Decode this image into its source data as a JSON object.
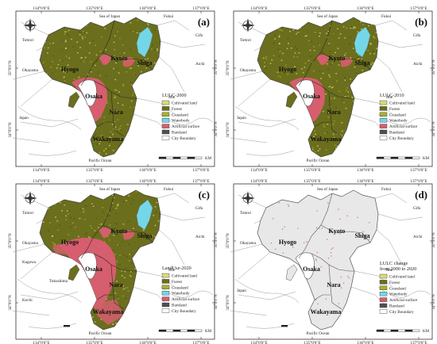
{
  "colors": {
    "forest": "#6b6e1c",
    "forest_dark": "#4f5214",
    "cultivated": "#d8dc7a",
    "grassland": "#a7b02e",
    "waterbody": "#73d7e8",
    "artificial": "#d65e6e",
    "bareland": "#505050",
    "change_bg": "#e8e8e8",
    "outline": "#7a7a7a"
  },
  "top_lon_ticks": [
    "134°0'0\"E",
    "135°0'0\"E",
    "136°0'0\"E",
    "137°0'0\"E"
  ],
  "bottom_lon_ticks": [
    "134°0'0\"E",
    "135°0'0\"E",
    "136°0'0\"E",
    "137°0'0\"E"
  ],
  "lat_ticks": [
    "35°0'0\"N",
    "34°0'0\"N"
  ],
  "scale_unit": "KM",
  "panels": [
    {
      "id": "a",
      "letter": "(a)",
      "mode": "lulc",
      "places": {
        "sea": "Sea of Japan",
        "fukui": "Fukui",
        "gifu": "Gifu",
        "tottori": "Tottori",
        "aichi": "Aichi",
        "okayama": "Okayama",
        "mie": "Mie",
        "japan": "Japan",
        "pacific": "Pacific Ocean",
        "kyoto": "Kyoto",
        "shiga": "Shiga",
        "hyogo": "Hyogo",
        "osaka": "Osaka",
        "nara": "Nara",
        "wakayama": "Wakayama"
      },
      "legend": {
        "title": "LULC-2000",
        "items": [
          "Cultivated land",
          "Forest",
          "Grassland",
          "Waterbody",
          "Artificial surface",
          "Bareland",
          "City Boundary"
        ]
      }
    },
    {
      "id": "b",
      "letter": "(b)",
      "mode": "lulc",
      "places": {
        "sea": "Sea of Japan",
        "fukui": "Fukui",
        "gifu": "Gifu",
        "tottori": "Tottori",
        "aichi": "Aichi",
        "okayama": "Okayama",
        "mie": "Mie",
        "japan": "Japan",
        "pacific": "Pacific Ocean",
        "kyoto": "Kyoto",
        "shiga": "Shiga",
        "hyogo": "Hyogo",
        "osaka": "Osaka",
        "nara": "Nara",
        "wakayama": "Wakayama"
      },
      "legend": {
        "title": "LULC-2010",
        "items": [
          "Cultivated land",
          "Forest",
          "Grassland",
          "Waterbody",
          "Artificial surface",
          "Bareland",
          "City Boundary"
        ]
      }
    },
    {
      "id": "c",
      "letter": "(c)",
      "mode": "lulc2020",
      "places": {
        "sea": "Sea of Japan",
        "fukui": "Fukui",
        "gifu": "Gifu",
        "tottori": "Tottori",
        "aichi": "Aichi",
        "okayama": "Okayama",
        "mie": "Mie",
        "kagawa": "Kagawa",
        "tokushima": "Tokushima",
        "kochi": "Kochi",
        "pacific": "Pacific Ocean",
        "kyoto": "Kyoto",
        "shiga": "Shiga",
        "hyogo": "Hyogo",
        "osaka": "Osaka",
        "nara": "Nara",
        "wakayama": "Wakayama"
      },
      "legend": {
        "title": "LandUse-2020",
        "items": [
          "Cultivated land",
          "Forest",
          "Grassland",
          "Waterbody",
          "Artificial surface",
          "Bareland",
          "City Boundary"
        ]
      }
    },
    {
      "id": "d",
      "letter": "(d)",
      "mode": "change",
      "places": {
        "sea": "Sea of Japan",
        "fukui": "Fukui",
        "gifu": "Gifu",
        "tottori": "Tottori",
        "aichi": "Aichi",
        "okayama": "Okayama",
        "mie": "Mie",
        "japan": "Japan",
        "pacific": "Pacific Ocean",
        "kyoto": "Kyoto",
        "shiga": "Shiga",
        "hyogo": "Hyogo",
        "osaka": "Osaka",
        "nara": "Nara",
        "wakayama": "Wakayama"
      },
      "legend": {
        "title_line1": "LULC change",
        "title_line2": "from 2000 to 2020",
        "items": [
          "Cultivated land",
          "Forest",
          "Grassland",
          "Waterbody",
          "Artificial surface",
          "Bareland",
          "City Boundary"
        ]
      }
    }
  ]
}
